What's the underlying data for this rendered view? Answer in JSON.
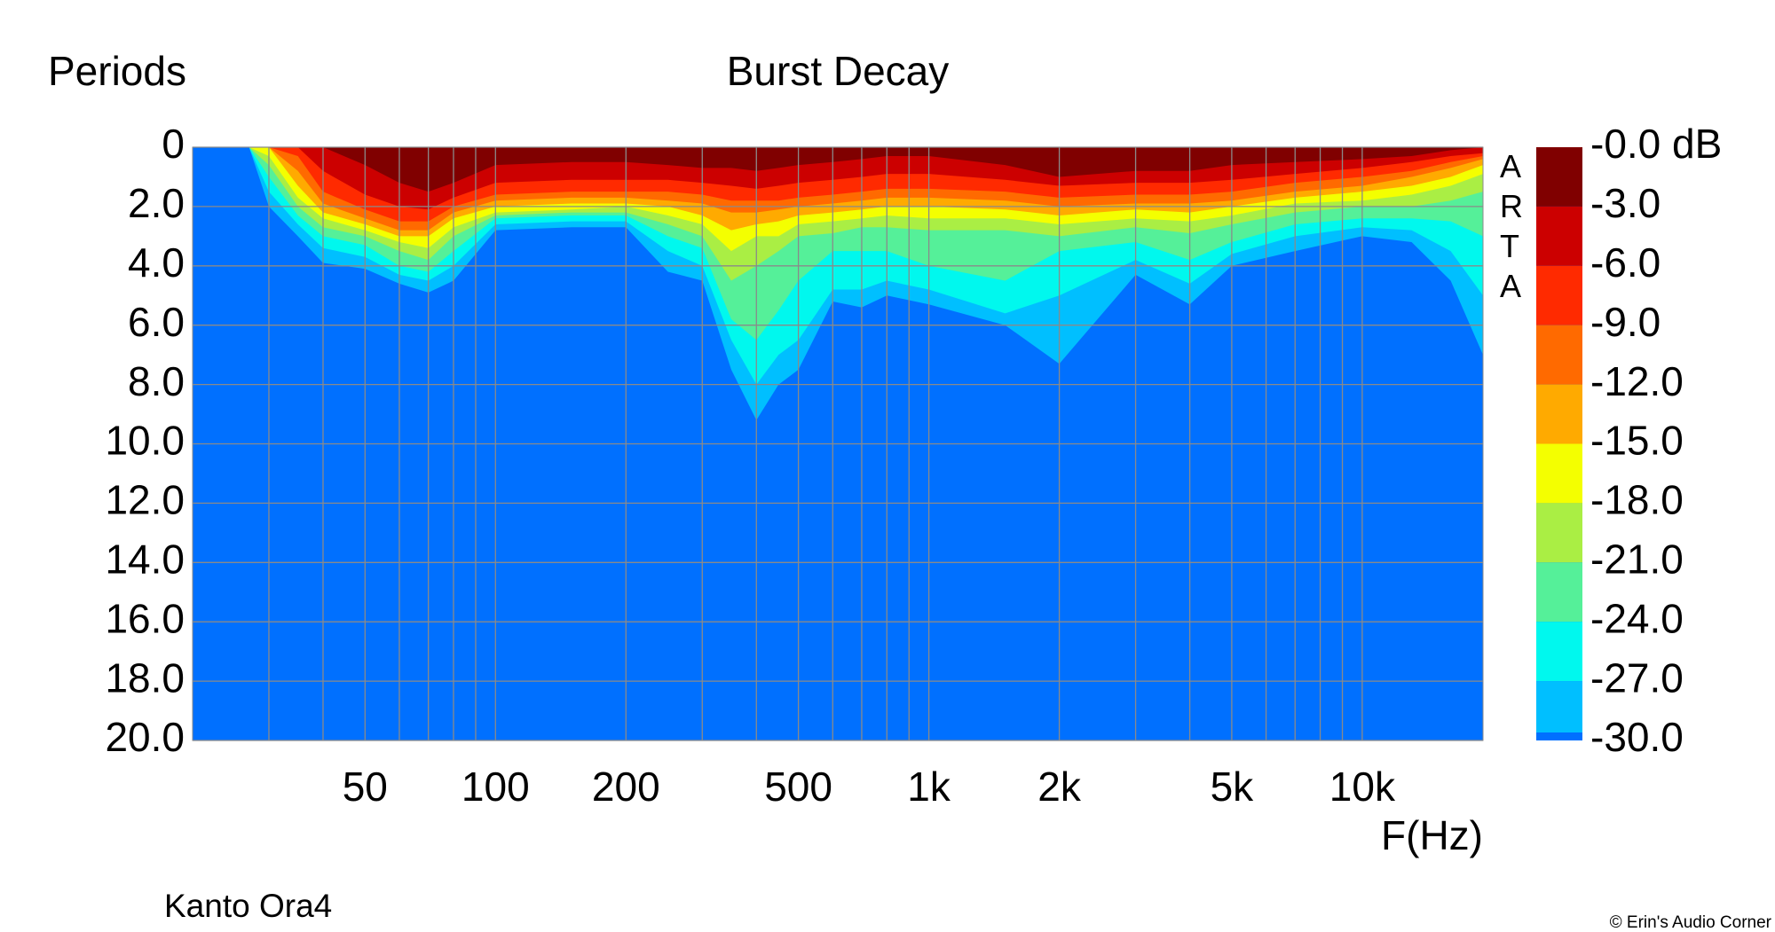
{
  "chart_data": {
    "type": "decay-map",
    "title": "Burst Decay",
    "y_label": "Periods",
    "x_label": "F(Hz)",
    "watermark": "ARTA",
    "caption": "Kanto Ora4",
    "credit": "© Erin's Audio Corner",
    "xscale": "log",
    "xlim": [
      20,
      19000
    ],
    "xticks": [
      50,
      100,
      200,
      500,
      {
        "value": 1000,
        "label": "1k"
      },
      {
        "value": 2000,
        "label": "2k"
      },
      {
        "value": 5000,
        "label": "5k"
      },
      {
        "value": 10000,
        "label": "10k"
      }
    ],
    "xminor": [
      30,
      40,
      60,
      70,
      80,
      90,
      300,
      400,
      600,
      700,
      800,
      900,
      3000,
      4000,
      6000,
      7000,
      8000,
      9000
    ],
    "ylim": [
      0,
      20
    ],
    "yticks": [
      0,
      {
        "value": 2,
        "label": "2.0"
      },
      {
        "value": 4,
        "label": "4.0"
      },
      {
        "value": 6,
        "label": "6.0"
      },
      {
        "value": 8,
        "label": "8.0"
      },
      {
        "value": 10,
        "label": "10.0"
      },
      {
        "value": 12,
        "label": "12.0"
      },
      {
        "value": 14,
        "label": "14.0"
      },
      {
        "value": 16,
        "label": "16.0"
      },
      {
        "value": 18,
        "label": "18.0"
      },
      {
        "value": 20,
        "label": "20.0"
      }
    ],
    "zlim": [
      0,
      -30
    ],
    "zticks": [
      {
        "value": 0,
        "label": "-0.0 dB"
      },
      {
        "value": -3,
        "label": "-3.0"
      },
      {
        "value": -6,
        "label": "-6.0"
      },
      {
        "value": -9,
        "label": "-9.0"
      },
      {
        "value": -12,
        "label": "-12.0"
      },
      {
        "value": -15,
        "label": "-15.0"
      },
      {
        "value": -18,
        "label": "-18.0"
      },
      {
        "value": -21,
        "label": "-21.0"
      },
      {
        "value": -24,
        "label": "-24.0"
      },
      {
        "value": -27,
        "label": "-27.0"
      },
      {
        "value": -30,
        "label": "-30.0"
      }
    ],
    "background_color": "#0070ff",
    "grid": true,
    "x": [
      20,
      27,
      30,
      35,
      40,
      50,
      60,
      70,
      80,
      100,
      150,
      200,
      250,
      300,
      350,
      400,
      450,
      500,
      600,
      700,
      800,
      1000,
      1500,
      2000,
      3000,
      4000,
      5000,
      7000,
      10000,
      13000,
      16000,
      19000
    ],
    "series": [
      {
        "color": "#800000",
        "values": [
          0,
          0,
          0,
          0,
          0,
          0.6,
          1.2,
          1.5,
          1.2,
          0.6,
          0.5,
          0.5,
          0.6,
          0.7,
          0.7,
          0.8,
          0.7,
          0.6,
          0.5,
          0.4,
          0.3,
          0.3,
          0.6,
          1.0,
          0.8,
          0.8,
          0.6,
          0.5,
          0.4,
          0.3,
          0.1,
          0
        ]
      },
      {
        "color": "#cc0000",
        "values": [
          0,
          0,
          0,
          0,
          0.8,
          1.6,
          2.0,
          2.1,
          1.7,
          1.2,
          1.1,
          1.1,
          1.1,
          1.2,
          1.3,
          1.4,
          1.3,
          1.2,
          1.1,
          1.0,
          0.9,
          0.9,
          1.1,
          1.3,
          1.2,
          1.2,
          1.1,
          0.9,
          0.7,
          0.5,
          0.3,
          0.2
        ]
      },
      {
        "color": "#ff2a00",
        "values": [
          0,
          0,
          0,
          0.3,
          1.5,
          2.1,
          2.5,
          2.5,
          2.0,
          1.6,
          1.5,
          1.5,
          1.5,
          1.6,
          1.8,
          1.8,
          1.8,
          1.7,
          1.6,
          1.5,
          1.4,
          1.4,
          1.5,
          1.7,
          1.6,
          1.6,
          1.5,
          1.2,
          1.0,
          0.8,
          0.5,
          0.3
        ]
      },
      {
        "color": "#ff6a00",
        "values": [
          0,
          0,
          0,
          0.8,
          1.9,
          2.4,
          2.8,
          2.8,
          2.2,
          1.8,
          1.7,
          1.7,
          1.8,
          1.9,
          2.2,
          2.2,
          2.1,
          2.0,
          1.9,
          1.8,
          1.7,
          1.7,
          1.8,
          2.0,
          1.9,
          1.9,
          1.8,
          1.5,
          1.3,
          1.0,
          0.7,
          0.4
        ]
      },
      {
        "color": "#ffaa00",
        "values": [
          0,
          0,
          0,
          1.3,
          2.2,
          2.6,
          3.0,
          3.0,
          2.4,
          2.0,
          1.9,
          1.9,
          2.0,
          2.3,
          2.8,
          2.6,
          2.5,
          2.3,
          2.2,
          2.1,
          2.0,
          2.0,
          2.1,
          2.3,
          2.1,
          2.2,
          2.0,
          1.7,
          1.5,
          1.3,
          1.0,
          0.6
        ]
      },
      {
        "color": "#f4ff00",
        "values": [
          0,
          0,
          0.3,
          1.7,
          2.4,
          2.8,
          3.2,
          3.4,
          2.7,
          2.2,
          2.1,
          2.0,
          2.3,
          2.6,
          3.5,
          3.0,
          3.0,
          2.6,
          2.5,
          2.4,
          2.3,
          2.4,
          2.4,
          2.6,
          2.4,
          2.5,
          2.3,
          1.9,
          1.8,
          1.6,
          1.3,
          0.9
        ]
      },
      {
        "color": "#aaee44",
        "values": [
          0,
          0,
          0.6,
          2.0,
          2.7,
          3.0,
          3.5,
          3.8,
          3.0,
          2.3,
          2.2,
          2.2,
          2.6,
          3.0,
          4.5,
          4.0,
          3.5,
          3.0,
          2.9,
          2.7,
          2.7,
          2.8,
          2.8,
          3.0,
          2.7,
          2.9,
          2.6,
          2.2,
          2.0,
          2.0,
          1.8,
          1.5
        ]
      },
      {
        "color": "#55f099",
        "values": [
          0,
          0,
          1.0,
          2.3,
          3.0,
          3.3,
          4.0,
          4.2,
          3.5,
          2.4,
          2.3,
          2.3,
          3.0,
          3.4,
          5.8,
          6.5,
          5.5,
          4.5,
          3.5,
          3.5,
          3.5,
          4.0,
          4.5,
          3.5,
          3.2,
          3.8,
          3.2,
          2.6,
          2.4,
          2.4,
          2.5,
          3.0
        ]
      },
      {
        "color": "#00f8ee",
        "values": [
          0,
          0,
          1.5,
          2.6,
          3.4,
          3.7,
          4.3,
          4.5,
          4.0,
          2.6,
          2.5,
          2.5,
          3.5,
          4.0,
          6.5,
          8.0,
          7.0,
          6.5,
          4.8,
          4.8,
          4.5,
          4.8,
          5.6,
          5.0,
          3.8,
          4.6,
          3.6,
          3.0,
          2.7,
          2.8,
          3.5,
          5.0
        ]
      },
      {
        "color": "#00bfff",
        "values": [
          0,
          0,
          2.0,
          3.0,
          3.9,
          4.1,
          4.6,
          4.9,
          4.5,
          2.8,
          2.7,
          2.7,
          4.2,
          4.5,
          7.5,
          9.2,
          8.0,
          7.5,
          5.2,
          5.4,
          5.0,
          5.3,
          6.0,
          7.3,
          4.3,
          5.3,
          4.0,
          3.5,
          3.0,
          3.2,
          4.5,
          7.0
        ]
      }
    ]
  }
}
